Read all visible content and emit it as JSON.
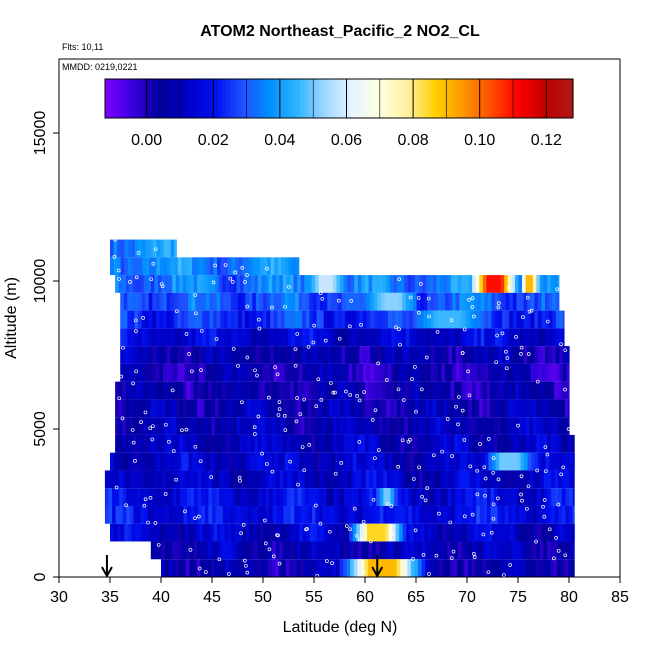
{
  "chart_data": {
    "type": "heatmap",
    "title": "ATOM2 Northeast_Pacific_2 NO2_CL",
    "flights_text": "Flts: 10,11",
    "mmdd_text": "MMDD: 0219,0221",
    "xlabel": "Latitude (deg N)",
    "ylabel": "Altitude (m)",
    "xlim": [
      30,
      85
    ],
    "ylim": [
      0,
      17500
    ],
    "x_ticks": [
      30,
      35,
      40,
      45,
      50,
      55,
      60,
      65,
      70,
      75,
      80,
      85
    ],
    "y_ticks": [
      0,
      5000,
      10000,
      15000
    ],
    "grid": false,
    "colorbar": {
      "placement": "top-inside",
      "range": [
        -0.0125,
        0.128
      ],
      "ticks": [
        0.0,
        0.02,
        0.04,
        0.06,
        0.08,
        0.1,
        0.12
      ],
      "tick_labels": [
        "0.00",
        "0.02",
        "0.04",
        "0.06",
        "0.08",
        "0.10",
        "0.12"
      ],
      "colors": [
        "#7f00ff",
        "#3a00e0",
        "#00009a",
        "#0000c8",
        "#0010f0",
        "#2050ff",
        "#0090ff",
        "#30b4ff",
        "#a0d8ff",
        "#e8f4ff",
        "#ffffe0",
        "#fff0a0",
        "#ffd000",
        "#ff9800",
        "#ff5000",
        "#ff0000",
        "#c00000",
        "#b01818"
      ]
    },
    "markers": {
      "description": "flight ramp locations",
      "x": [
        34.7,
        61.2
      ]
    },
    "layers": [
      {
        "alt": [
          10800,
          11400
        ],
        "x": [
          35,
          41.5
        ],
        "base": 0.038
      },
      {
        "alt": [
          10200,
          10800
        ],
        "x": [
          35,
          53.5
        ],
        "base": 0.036
      },
      {
        "alt": [
          9600,
          10200
        ],
        "x": [
          35.5,
          79
        ],
        "base": 0.034,
        "hot": [
          [
            54,
            58,
            0.058
          ],
          [
            70,
            75,
            0.11
          ],
          [
            75,
            77,
            0.09
          ]
        ]
      },
      {
        "alt": [
          9000,
          9600
        ],
        "x": [
          36,
          79
        ],
        "base": 0.03,
        "hot": [
          [
            60,
            65,
            0.052
          ]
        ]
      },
      {
        "alt": [
          8400,
          9000
        ],
        "x": [
          36,
          79.5
        ],
        "base": 0.024,
        "hot": [
          [
            64,
            72,
            0.046
          ]
        ]
      },
      {
        "alt": [
          7800,
          8400
        ],
        "x": [
          36,
          79.5
        ],
        "base": 0.014
      },
      {
        "alt": [
          7200,
          7800
        ],
        "x": [
          36,
          80
        ],
        "base": 0.006
      },
      {
        "alt": [
          6600,
          7200
        ],
        "x": [
          36,
          80
        ],
        "base": 0.003
      },
      {
        "alt": [
          6000,
          6600
        ],
        "x": [
          35.5,
          80
        ],
        "base": 0.004
      },
      {
        "alt": [
          5400,
          6000
        ],
        "x": [
          35.5,
          80
        ],
        "base": 0.006
      },
      {
        "alt": [
          4800,
          5400
        ],
        "x": [
          35.5,
          80
        ],
        "base": 0.008
      },
      {
        "alt": [
          4200,
          4800
        ],
        "x": [
          35.5,
          80.5
        ],
        "base": 0.01
      },
      {
        "alt": [
          3600,
          4200
        ],
        "x": [
          35,
          80.5
        ],
        "base": 0.012,
        "hot": [
          [
            71,
            77,
            0.05
          ]
        ]
      },
      {
        "alt": [
          3000,
          3600
        ],
        "x": [
          34.5,
          80.5
        ],
        "base": 0.012
      },
      {
        "alt": [
          2400,
          3000
        ],
        "x": [
          34.5,
          80.5
        ],
        "base": 0.016,
        "hot": [
          [
            61,
            63,
            0.05
          ]
        ]
      },
      {
        "alt": [
          1800,
          2400
        ],
        "x": [
          34.5,
          80.5
        ],
        "base": 0.018
      },
      {
        "alt": [
          1200,
          1800
        ],
        "x": [
          35,
          80.5
        ],
        "base": 0.012,
        "hot": [
          [
            58,
            64,
            0.085
          ]
        ]
      },
      {
        "alt": [
          600,
          1200
        ],
        "x": [
          39,
          80.5
        ],
        "base": 0.008
      },
      {
        "alt": [
          0,
          600
        ],
        "x": [
          40,
          80.5
        ],
        "base": 0.006,
        "hot": [
          [
            57,
            66,
            0.09
          ]
        ]
      }
    ]
  }
}
